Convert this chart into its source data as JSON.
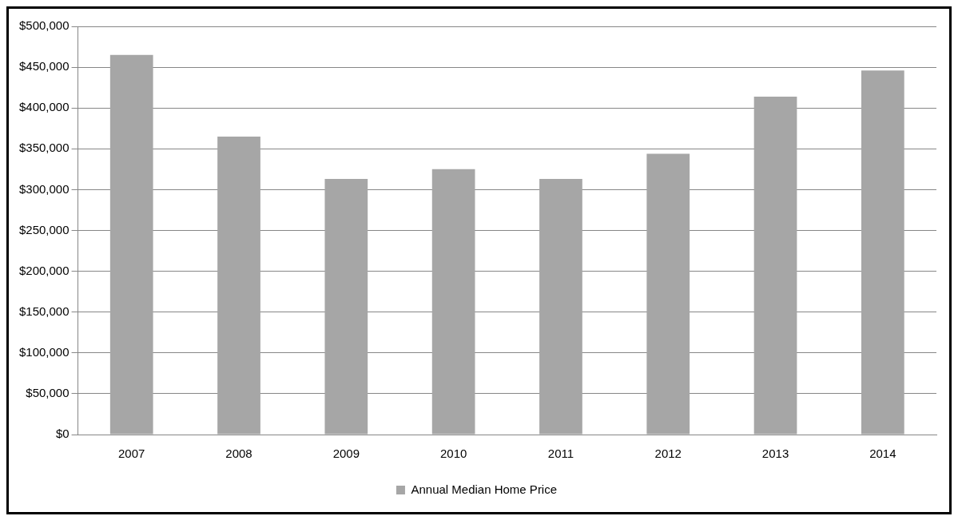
{
  "chart_data": {
    "type": "bar",
    "categories": [
      "2007",
      "2008",
      "2009",
      "2010",
      "2011",
      "2012",
      "2013",
      "2014"
    ],
    "series": [
      {
        "name": "Annual Median Home Price",
        "color": "#a6a6a6",
        "values": [
          465000,
          365000,
          313000,
          325000,
          313000,
          344000,
          414000,
          446000
        ]
      }
    ],
    "ylim": [
      0,
      500000
    ],
    "yticks": [
      {
        "value": 0,
        "label": "$0"
      },
      {
        "value": 50000,
        "label": "$50,000"
      },
      {
        "value": 100000,
        "label": "$100,000"
      },
      {
        "value": 150000,
        "label": "$150,000"
      },
      {
        "value": 200000,
        "label": "$200,000"
      },
      {
        "value": 250000,
        "label": "$250,000"
      },
      {
        "value": 300000,
        "label": "$300,000"
      },
      {
        "value": 350000,
        "label": "$350,000"
      },
      {
        "value": 400000,
        "label": "$400,000"
      },
      {
        "value": 450000,
        "label": "$450,000"
      },
      {
        "value": 500000,
        "label": "$500,000"
      }
    ],
    "grid": "y",
    "legend": "bottom"
  }
}
